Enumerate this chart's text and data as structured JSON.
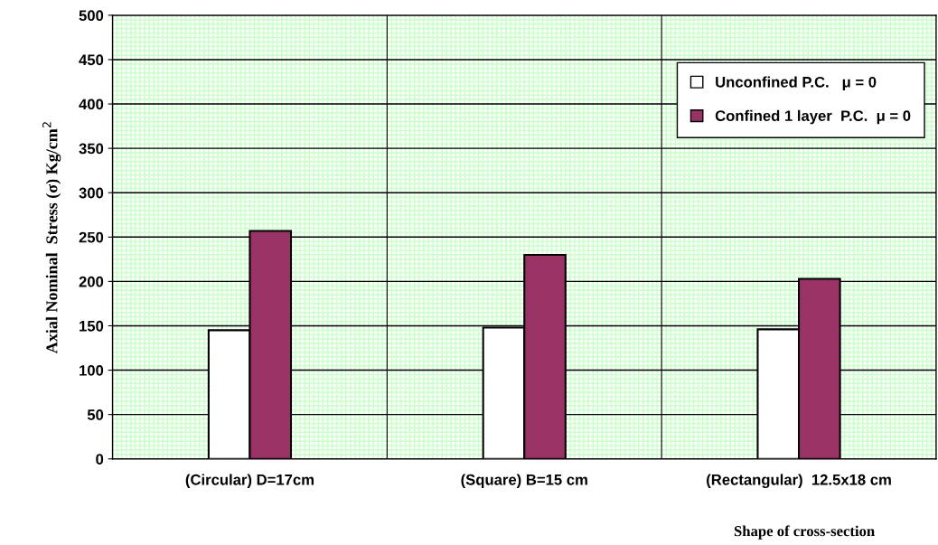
{
  "chart_data": {
    "type": "bar",
    "xlabel": "Shape of cross-section",
    "ylabel": "Axial Nominal  Stress (σ) Kg/cm$^{2}$",
    "categories": [
      "(Circular) D=17cm",
      "(Square) B=15 cm",
      "(Rectangular)  12.5x18 cm"
    ],
    "series": [
      {
        "name": "Unconfined P.C.   μ = 0",
        "color": "#ffffff",
        "values": [
          145,
          148,
          146
        ]
      },
      {
        "name": "Confined 1 layer  P.C.  μ = 0",
        "color": "#993366",
        "values": [
          257,
          230,
          203
        ]
      }
    ],
    "ylim": [
      0,
      500
    ],
    "yticks": [
      0,
      50,
      100,
      150,
      200,
      250,
      300,
      350,
      400,
      450,
      500
    ],
    "grid": true,
    "legend": "top right"
  }
}
